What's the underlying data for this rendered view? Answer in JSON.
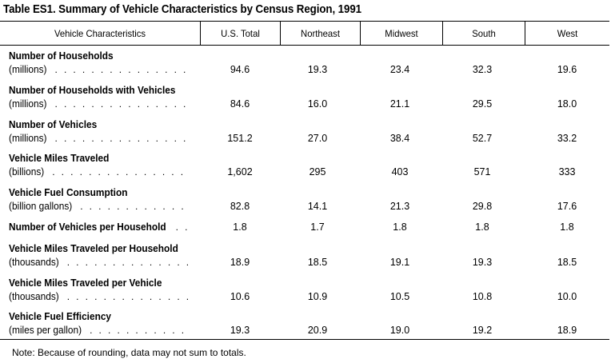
{
  "title": "Table ES1. Summary of Vehicle Characteristics by Census Region, 1991",
  "columns": [
    "Vehicle Characteristics",
    "U.S. Total",
    "Northeast",
    "Midwest",
    "South",
    "West"
  ],
  "rows": [
    {
      "label": "Number of Households",
      "sub": "(millions)",
      "values": [
        "94.6",
        "19.3",
        "23.4",
        "32.3",
        "19.6"
      ]
    },
    {
      "label": "Number of Households with Vehicles",
      "sub": "(millions)",
      "values": [
        "84.6",
        "16.0",
        "21.1",
        "29.5",
        "18.0"
      ]
    },
    {
      "label": "Number of Vehicles",
      "sub": "(millions)",
      "values": [
        "151.2",
        "27.0",
        "38.4",
        "52.7",
        "33.2"
      ]
    },
    {
      "label": "Vehicle Miles Traveled",
      "sub": "(billions)",
      "values": [
        "1,602",
        "295",
        "403",
        "571",
        "333"
      ]
    },
    {
      "label": "Vehicle Fuel Consumption",
      "sub": "(billion gallons)",
      "values": [
        "82.8",
        "14.1",
        "21.3",
        "29.8",
        "17.6"
      ]
    },
    {
      "label": "Number of Vehicles per Household",
      "sub": "",
      "values": [
        "1.8",
        "1.7",
        "1.8",
        "1.8",
        "1.8"
      ]
    },
    {
      "label": "Vehicle Miles Traveled per Household",
      "sub": "(thousands)",
      "values": [
        "18.9",
        "18.5",
        "19.1",
        "19.3",
        "18.5"
      ]
    },
    {
      "label": "Vehicle Miles Traveled per Vehicle",
      "sub": "(thousands)",
      "values": [
        "10.6",
        "10.9",
        "10.5",
        "10.8",
        "10.0"
      ]
    },
    {
      "label": "Vehicle Fuel Efficiency",
      "sub": "(miles per gallon)",
      "values": [
        "19.3",
        "20.9",
        "19.0",
        "19.2",
        "18.9"
      ]
    }
  ],
  "note": "Note:  Because of rounding, data may not sum to totals."
}
